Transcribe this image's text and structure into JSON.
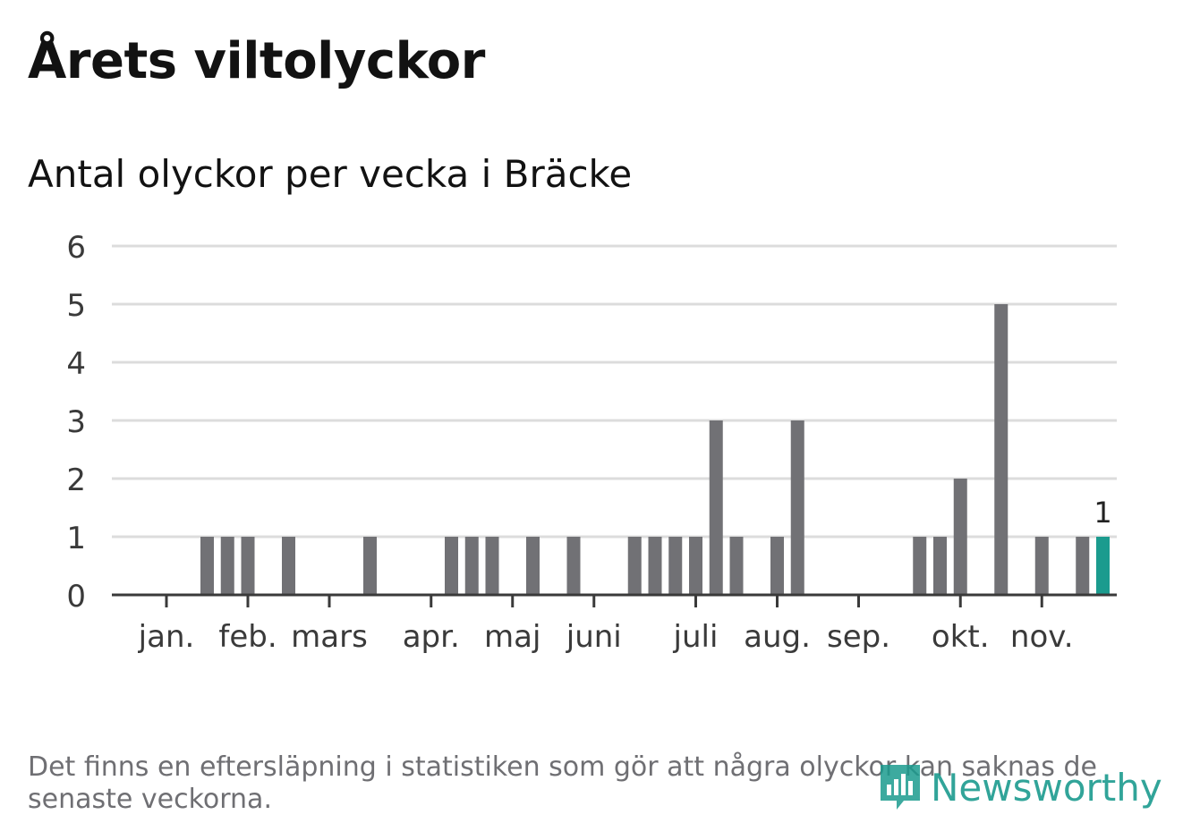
{
  "title": "Årets viltolyckor",
  "subtitle": "Antal olyckor per vecka i Bräcke",
  "footnote": "Det finns en eftersläpning i statistiken som gör att några olyckor kan saknas de senaste veckorna.",
  "logo_text": "Newsworthy",
  "colors": {
    "bar": "#717175",
    "highlight": "#1b9b8e",
    "grid": "#dcdcdc",
    "axis": "#3a3a3a",
    "logo": "#1b9b8e"
  },
  "chart_data": {
    "type": "bar",
    "x_unit": "week",
    "x": [
      1,
      2,
      3,
      4,
      5,
      6,
      7,
      8,
      9,
      10,
      11,
      12,
      13,
      14,
      15,
      16,
      17,
      18,
      19,
      20,
      21,
      22,
      23,
      24,
      25,
      26,
      27,
      28,
      29,
      30,
      31,
      32,
      33,
      34,
      35,
      36,
      37,
      38,
      39,
      40,
      41,
      42,
      43,
      44,
      45,
      46,
      47
    ],
    "values": [
      0,
      0,
      1,
      1,
      1,
      0,
      1,
      0,
      0,
      0,
      1,
      0,
      0,
      0,
      1,
      1,
      1,
      0,
      1,
      0,
      1,
      0,
      0,
      1,
      1,
      1,
      1,
      3,
      1,
      0,
      1,
      3,
      0,
      0,
      0,
      0,
      0,
      1,
      1,
      2,
      0,
      5,
      0,
      1,
      0,
      1,
      1
    ],
    "highlight_index": 46,
    "highlight_label": "1",
    "month_labels": [
      "jan.",
      "feb.",
      "mars",
      "apr.",
      "maj",
      "juni",
      "juli",
      "aug.",
      "sep.",
      "okt.",
      "nov."
    ],
    "ylim": [
      0,
      6
    ],
    "yticks": [
      "0",
      "1",
      "2",
      "3",
      "4",
      "5",
      "6"
    ],
    "grid": true
  }
}
